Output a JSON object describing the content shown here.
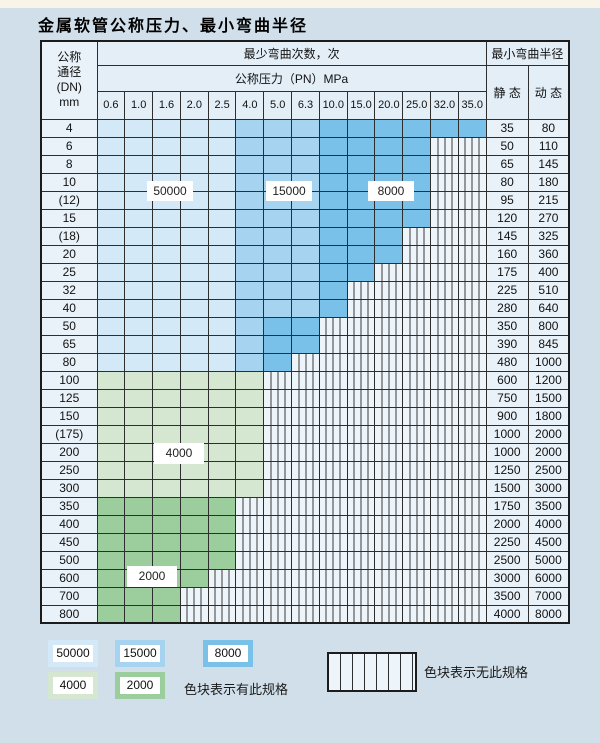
{
  "title": "金属软管公称压力、最小弯曲半径",
  "header": {
    "dn_label_lines": [
      "公称",
      "通径",
      "(DN)",
      "mm"
    ],
    "cycles_label": "最少弯曲次数，次",
    "pressure_label": "公称压力（PN）MPa",
    "pressures": [
      "0.6",
      "1.0",
      "1.6",
      "2.0",
      "2.5",
      "4.0",
      "5.0",
      "6.3",
      "10.0",
      "15.0",
      "20.0",
      "25.0",
      "32.0",
      "35.0"
    ],
    "radius_label": "最小弯曲半径",
    "static_label": "静 态",
    "dynamic_label": "动 态"
  },
  "zone_colors": {
    "50000": "#d3e9f7",
    "15000": "#a6d3ef",
    "8000": "#79c1e8",
    "4000": "#d5e7d1",
    "2000": "#9cce9d"
  },
  "rows": [
    {
      "dn": "4",
      "static": "35",
      "dynamic": "80",
      "zones": {
        "50000": "2.5",
        "15000": "6.3",
        "8000": "35.0"
      }
    },
    {
      "dn": "6",
      "static": "50",
      "dynamic": "110",
      "zones": {
        "50000": "2.5",
        "15000": "6.3",
        "8000": "25.0"
      }
    },
    {
      "dn": "8",
      "static": "65",
      "dynamic": "145",
      "zones": {
        "50000": "2.5",
        "15000": "6.3",
        "8000": "25.0"
      }
    },
    {
      "dn": "10",
      "static": "80",
      "dynamic": "180",
      "zones": {
        "50000": "2.5",
        "15000": "6.3",
        "8000": "25.0"
      }
    },
    {
      "dn": "(12)",
      "static": "95",
      "dynamic": "215",
      "zones": {
        "50000": "2.5",
        "15000": "6.3",
        "8000": "25.0"
      }
    },
    {
      "dn": "15",
      "static": "120",
      "dynamic": "270",
      "zones": {
        "50000": "2.5",
        "15000": "6.3",
        "8000": "25.0"
      }
    },
    {
      "dn": "(18)",
      "static": "145",
      "dynamic": "325",
      "zones": {
        "50000": "2.5",
        "15000": "6.3",
        "8000": "20.0"
      }
    },
    {
      "dn": "20",
      "static": "160",
      "dynamic": "360",
      "zones": {
        "50000": "2.5",
        "15000": "6.3",
        "8000": "20.0"
      }
    },
    {
      "dn": "25",
      "static": "175",
      "dynamic": "400",
      "zones": {
        "50000": "2.5",
        "15000": "6.3",
        "8000": "15.0"
      }
    },
    {
      "dn": "32",
      "static": "225",
      "dynamic": "510",
      "zones": {
        "50000": "2.5",
        "15000": "6.3",
        "8000": "10.0"
      }
    },
    {
      "dn": "40",
      "static": "280",
      "dynamic": "640",
      "zones": {
        "50000": "2.5",
        "15000": "6.3",
        "8000": "10.0"
      }
    },
    {
      "dn": "50",
      "static": "350",
      "dynamic": "800",
      "zones": {
        "50000": "2.5",
        "15000": "4.0",
        "8000": "6.3"
      }
    },
    {
      "dn": "65",
      "static": "390",
      "dynamic": "845",
      "zones": {
        "50000": "2.5",
        "15000": "4.0",
        "8000": "6.3"
      }
    },
    {
      "dn": "80",
      "static": "480",
      "dynamic": "1000",
      "zones": {
        "50000": "2.5",
        "15000": "4.0",
        "8000": "5.0"
      }
    },
    {
      "dn": "100",
      "static": "600",
      "dynamic": "1200",
      "zones": {
        "4000": "4.0"
      }
    },
    {
      "dn": "125",
      "static": "750",
      "dynamic": "1500",
      "zones": {
        "4000": "4.0"
      }
    },
    {
      "dn": "150",
      "static": "900",
      "dynamic": "1800",
      "zones": {
        "4000": "4.0"
      }
    },
    {
      "dn": "(175)",
      "static": "1000",
      "dynamic": "2000",
      "zones": {
        "4000": "4.0"
      }
    },
    {
      "dn": "200",
      "static": "1000",
      "dynamic": "2000",
      "zones": {
        "4000": "4.0"
      }
    },
    {
      "dn": "250",
      "static": "1250",
      "dynamic": "2500",
      "zones": {
        "4000": "4.0"
      }
    },
    {
      "dn": "300",
      "static": "1500",
      "dynamic": "3000",
      "zones": {
        "4000": "4.0"
      }
    },
    {
      "dn": "350",
      "static": "1750",
      "dynamic": "3500",
      "zones": {
        "2000": "2.5"
      }
    },
    {
      "dn": "400",
      "static": "2000",
      "dynamic": "4000",
      "zones": {
        "2000": "2.5"
      }
    },
    {
      "dn": "450",
      "static": "2250",
      "dynamic": "4500",
      "zones": {
        "2000": "2.5"
      }
    },
    {
      "dn": "500",
      "static": "2500",
      "dynamic": "5000",
      "zones": {
        "2000": "2.5"
      }
    },
    {
      "dn": "600",
      "static": "3000",
      "dynamic": "6000",
      "zones": {
        "2000": "2.0"
      }
    },
    {
      "dn": "700",
      "static": "3500",
      "dynamic": "7000",
      "zones": {
        "2000": "1.6"
      }
    },
    {
      "dn": "800",
      "static": "4000",
      "dynamic": "8000",
      "zones": {
        "2000": "1.6"
      }
    }
  ],
  "overlays": [
    {
      "text": "50000"
    },
    {
      "text": "15000"
    },
    {
      "text": "8000"
    },
    {
      "text": "4000"
    },
    {
      "text": "2000"
    }
  ],
  "legend": {
    "items": [
      {
        "zone": "50000",
        "label": "50000"
      },
      {
        "zone": "15000",
        "label": "15000"
      },
      {
        "zone": "8000",
        "label": "8000"
      },
      {
        "zone": "4000",
        "label": "4000"
      },
      {
        "zone": "2000",
        "label": "2000"
      }
    ],
    "has_spec_note": "色块表示有此规格",
    "no_spec_note": "色块表示无此规格"
  }
}
